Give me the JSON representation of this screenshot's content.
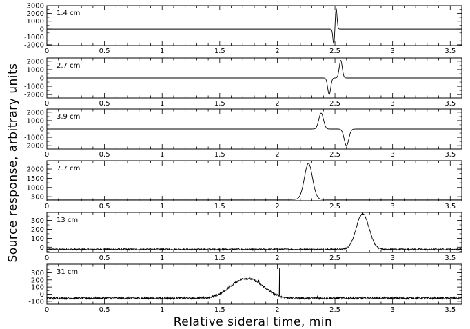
{
  "figure": {
    "xlabel": "Relative sideral time, min",
    "ylabel": "Source response, arbitrary units"
  },
  "chart_data": [
    {
      "type": "line",
      "label": "1.4 cm",
      "xlim": [
        0,
        3.6
      ],
      "ylim": [
        -2100,
        3000
      ],
      "xticks": [
        0,
        0.5,
        1,
        1.5,
        2,
        2.5,
        3,
        3.5
      ],
      "yticks": [
        -2000,
        -1000,
        0,
        1000,
        2000,
        3000
      ],
      "signal": {
        "kind": "dipole",
        "center": 2.5,
        "lobes": [
          {
            "x": 2.51,
            "y": 2700,
            "w": 0.008
          },
          {
            "x": 2.49,
            "y": -2000,
            "w": 0.008
          }
        ]
      },
      "noise": 0
    },
    {
      "type": "line",
      "label": "2.7 cm",
      "xlim": [
        0,
        3.6
      ],
      "ylim": [
        -2400,
        2400
      ],
      "xticks": [
        0,
        0.5,
        1,
        1.5,
        2,
        2.5,
        3,
        3.5
      ],
      "yticks": [
        -2000,
        -1000,
        0,
        1000,
        2000
      ],
      "signal": {
        "kind": "dipole",
        "center": 2.5,
        "lobes": [
          {
            "x": 2.55,
            "y": 2100,
            "w": 0.013
          },
          {
            "x": 2.45,
            "y": -2000,
            "w": 0.013
          }
        ]
      },
      "noise": 0
    },
    {
      "type": "line",
      "label": "3.9 cm",
      "xlim": [
        0,
        3.6
      ],
      "ylim": [
        -2400,
        2400
      ],
      "xticks": [
        0,
        0.5,
        1,
        1.5,
        2,
        2.5,
        3,
        3.5
      ],
      "yticks": [
        -2000,
        -1000,
        0,
        1000,
        2000
      ],
      "signal": {
        "kind": "dipole",
        "center": 2.48,
        "lobes": [
          {
            "x": 2.38,
            "y": 1900,
            "w": 0.02
          },
          {
            "x": 2.6,
            "y": -2000,
            "w": 0.02
          }
        ]
      },
      "noise": 0
    },
    {
      "type": "line",
      "label": "7.7 cm",
      "xlim": [
        0,
        3.6
      ],
      "ylim": [
        280,
        2450
      ],
      "xticks": [
        0,
        0.5,
        1,
        1.5,
        2,
        2.5,
        3,
        3.5
      ],
      "yticks": [
        500,
        1000,
        1500,
        2000
      ],
      "baseline": 350,
      "signal": {
        "kind": "gaussian",
        "peaks": [
          {
            "x": 2.27,
            "y": 2300,
            "w": 0.035
          }
        ]
      },
      "noise": 0
    },
    {
      "type": "line",
      "label": "13 cm",
      "xlim": [
        0,
        3.6
      ],
      "ylim": [
        -60,
        390
      ],
      "xticks": [
        0,
        0.5,
        1,
        1.5,
        2,
        2.5,
        3,
        3.5
      ],
      "yticks": [
        0,
        100,
        200,
        300
      ],
      "baseline": -25,
      "signal": {
        "kind": "gaussian",
        "peaks": [
          {
            "x": 2.74,
            "y": 375,
            "w": 0.055
          }
        ]
      },
      "noise": 8
    },
    {
      "type": "line",
      "label": "31 cm",
      "xlim": [
        0,
        3.6
      ],
      "ylim": [
        -140,
        420
      ],
      "xticks": [
        0,
        0.5,
        1,
        1.5,
        2,
        2.5,
        3,
        3.5
      ],
      "yticks": [
        -100,
        0,
        100,
        200,
        300
      ],
      "baseline": -55,
      "signal": {
        "kind": "gaussian",
        "peaks": [
          {
            "x": 1.7,
            "y": 185,
            "w": 0.12
          },
          {
            "x": 1.85,
            "y": 35,
            "w": 0.1
          }
        ]
      },
      "spikes": [
        {
          "x": 1.84,
          "y": 200
        },
        {
          "x": 2.02,
          "y": 370
        },
        {
          "x": 2.35,
          "y": -20
        }
      ],
      "noise": 14
    }
  ]
}
